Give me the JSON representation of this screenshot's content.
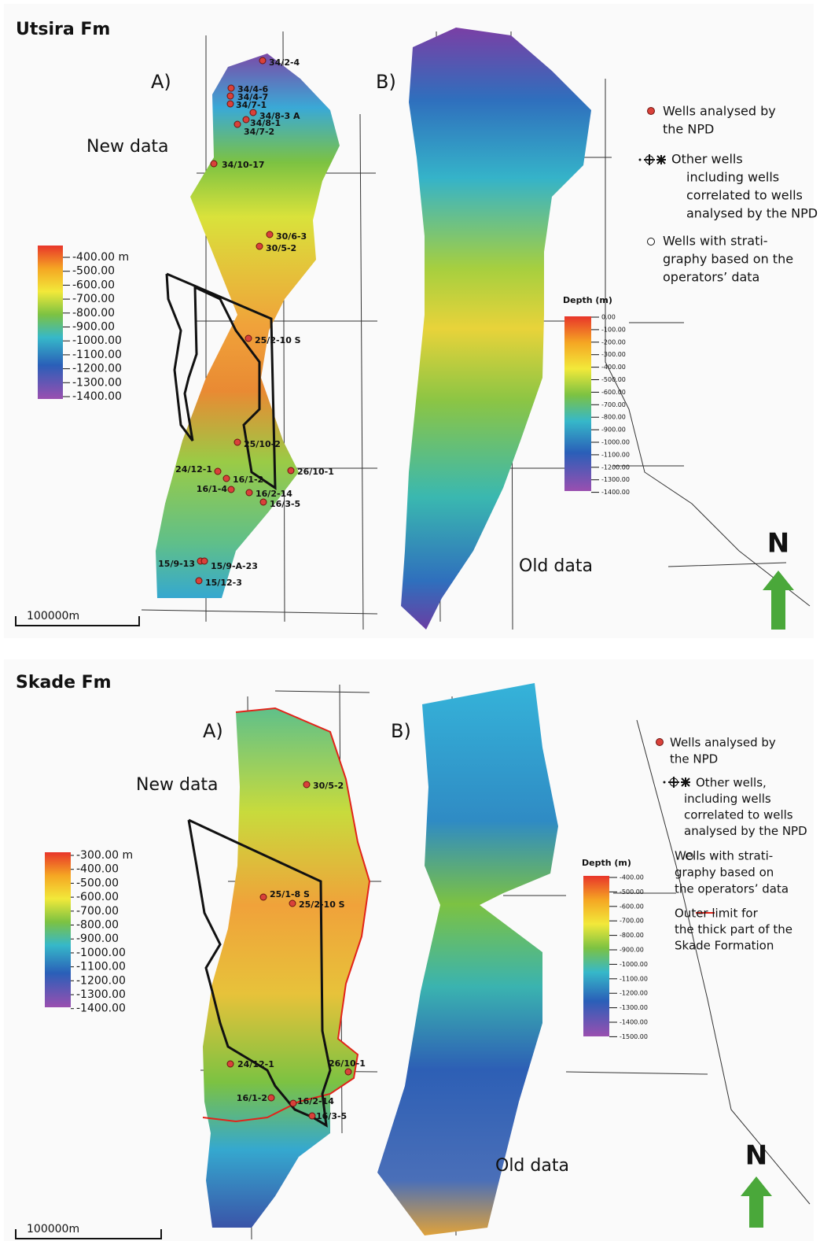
{
  "panels": [
    {
      "title": "Utsira Fm",
      "label_a": "A)",
      "label_b": "B)",
      "new_data": "New data",
      "old_data": "Old data",
      "scale": "100000m",
      "north": "N",
      "colorbar_a": {
        "labels": [
          "-400.00 m",
          "-500.00",
          "-600.00",
          "-700.00",
          "-800.00",
          "-900.00",
          "-1000.00",
          "-1100.00",
          "-1200.00",
          "-1300.00",
          "-1400.00"
        ]
      },
      "colorbar_b": {
        "title": "Depth (m)",
        "labels": [
          "0.00",
          "-100.00",
          "-200.00",
          "-300.00",
          "-400.00",
          "-500.00",
          "-600.00",
          "-700.00",
          "-800.00",
          "-900.00",
          "-1000.00",
          "-1100.00",
          "-1200.00",
          "-1300.00",
          "-1400.00"
        ]
      },
      "wells": [
        "34/2-4",
        "34/4-6",
        "34/4-7",
        "34/7-1",
        "34/8-3 A",
        "34/8-1",
        "34/7-2",
        "34/10-17",
        "30/6-3",
        "30/5-2",
        "25/2-10 S",
        "25/10-2",
        "26/10-1",
        "24/12-1",
        "16/1-2",
        "16/1-4",
        "16/2-14",
        "16/3-5",
        "15/9-13",
        "15/9-A-23",
        "15/12-3"
      ],
      "legend": [
        {
          "lines": [
            "Wells analysed by",
            "the NPD"
          ]
        },
        {
          "lines": [
            "Other wells",
            "including wells",
            "correlated to wells",
            "analysed by the NPD"
          ]
        },
        {
          "lines": [
            "Wells with strati-",
            "graphy based on the",
            "operators’ data"
          ]
        }
      ]
    },
    {
      "title": "Skade Fm",
      "label_a": "A)",
      "label_b": "B)",
      "new_data": "New data",
      "old_data": "Old data",
      "scale": "100000m",
      "north": "N",
      "colorbar_a": {
        "labels": [
          "-300.00 m",
          "-400.00",
          "-500.00",
          "-600.00",
          "-700.00",
          "-800.00",
          "-900.00",
          "-1000.00",
          "-1100.00",
          "-1200.00",
          "-1300.00",
          "-1400.00"
        ]
      },
      "colorbar_b": {
        "title": "Depth (m)",
        "labels": [
          "-400.00",
          "-500.00",
          "-600.00",
          "-700.00",
          "-800.00",
          "-900.00",
          "-1000.00",
          "-1100.00",
          "-1200.00",
          "-1300.00",
          "-1400.00",
          "-1500.00"
        ]
      },
      "wells": [
        "30/5-2",
        "25/1-8 S",
        "25/2-10 S",
        "24/12-1",
        "26/10-1",
        "16/1-2",
        "16/2-14",
        "16/3-5"
      ],
      "legend": [
        {
          "lines": [
            "Wells analysed by",
            "the NPD"
          ]
        },
        {
          "lines": [
            "Other wells,",
            "including wells",
            "correlated to wells",
            "analysed by the NPD"
          ]
        },
        {
          "lines": [
            "Wells with strati-",
            "graphy based on",
            "the operators’ data"
          ]
        },
        {
          "lines": [
            "Outer limit for",
            "the thick part of the",
            "Skade Formation"
          ]
        }
      ]
    }
  ]
}
